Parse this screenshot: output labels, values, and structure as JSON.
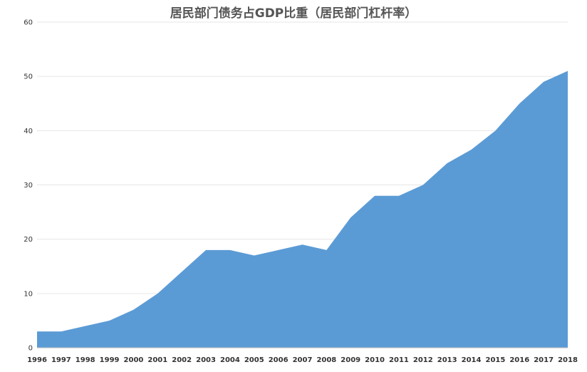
{
  "chart_data": {
    "type": "area",
    "title": "居民部门债务占GDP比重（居民部门杠杆率）",
    "xlabel": "",
    "ylabel": "",
    "categories": [
      "1996",
      "1997",
      "1998",
      "1999",
      "2000",
      "2001",
      "2002",
      "2003",
      "2004",
      "2005",
      "2006",
      "2007",
      "2008",
      "2009",
      "2010",
      "2011",
      "2012",
      "2013",
      "2014",
      "2015",
      "2016",
      "2017",
      "2018"
    ],
    "series": [
      {
        "values": [
          3,
          3,
          4,
          5,
          7,
          10,
          14,
          18,
          18,
          17,
          18,
          19,
          18,
          24,
          28,
          28,
          30,
          34,
          36.5,
          40,
          45,
          49,
          51
        ]
      }
    ],
    "ylim": [
      0,
      60
    ],
    "yticks": [
      0,
      10,
      20,
      30,
      40,
      50,
      60
    ],
    "grid": true,
    "fill_color": "#5b9bd5"
  }
}
